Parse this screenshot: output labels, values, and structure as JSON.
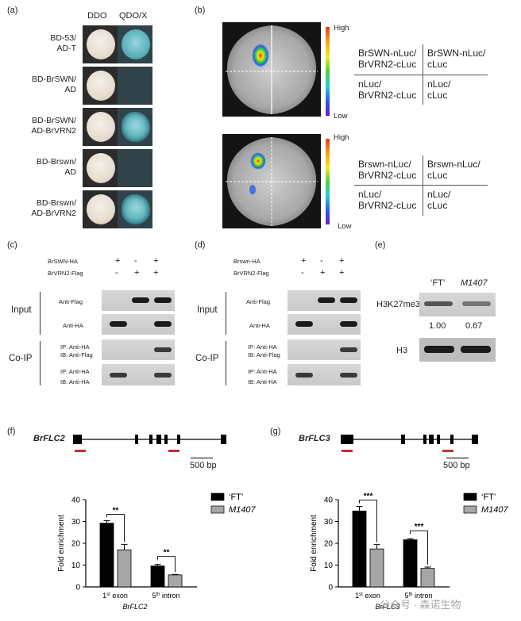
{
  "panel_a": {
    "label": "(a)",
    "columns": [
      "DDO",
      "QDO/X"
    ],
    "rows": [
      {
        "l1": "BD-53/",
        "l2": "AD-T",
        "qdo": "blue-flat"
      },
      {
        "l1": "BD-BrSWN/",
        "l2": "AD",
        "qdo": "none"
      },
      {
        "l1": "BD-BrSWN/",
        "l2": "AD-BrVRN2",
        "qdo": "blue-ruffled"
      },
      {
        "l1": "BD-Brswn/",
        "l2": "AD",
        "qdo": "none"
      },
      {
        "l1": "BD-Brswn/",
        "l2": "AD-BrVRN2",
        "qdo": "blue-ruffled"
      }
    ],
    "colors": {
      "cell_bg": "#2b2b2b",
      "qdo_bg": "#30434a"
    }
  },
  "panel_b": {
    "label": "(b)",
    "scale_high": "High",
    "scale_low": "Low",
    "top": {
      "tl1": "BrSWN-nLuc/",
      "tl2": "BrVRN2-cLuc",
      "tr1": "BrSWN-nLuc/",
      "tr2": "cLuc",
      "bl1": "nLuc/",
      "bl2": "BrVRN2-cLuc",
      "br1": "nLuc/",
      "br2": "cLuc"
    },
    "bottom": {
      "tl1": "Brswn-nLuc/",
      "tl2": "BrVRN2-cLuc",
      "tr1": "Brswn-nLuc/",
      "tr2": "cLuc",
      "bl1": "nLuc/",
      "bl2": "BrVRN2-cLuc",
      "br1": "nLuc/",
      "br2": "cLuc"
    }
  },
  "panel_c": {
    "label": "(c)",
    "row1_label": "BrSWN-HA",
    "row2_label": "BrVRN2-Flag",
    "row1_signs": [
      "+",
      "-",
      "+"
    ],
    "row2_signs": [
      "-",
      "+",
      "+"
    ],
    "input_label": "Input",
    "coip_label": "Co-IP",
    "blots": [
      "Anti-Flag",
      "Anti-HA",
      "IP: Anti-HA",
      "IB: Anti-Flag",
      "IP: Anti-HA",
      "IB: Anti-HA"
    ]
  },
  "panel_d": {
    "label": "(d)",
    "row1_label": "Brswn-HA",
    "row2_label": "BrVRN2-Flag",
    "row1_signs": [
      "+",
      "-",
      "+"
    ],
    "row2_signs": [
      "-",
      "+",
      "+"
    ],
    "input_label": "Input",
    "coip_label": "Co-IP",
    "blots": [
      "Anti-Flag",
      "Anti-HA",
      "IP: Anti-HA",
      "IB: Anti-Flag",
      "IP: Anti-HA",
      "IB: Anti-HA"
    ]
  },
  "panel_e": {
    "label": "(e)",
    "col1": "‘FT’",
    "col2": "M1407",
    "row1": "H3K27me3",
    "values": [
      "1.00",
      "0.67"
    ],
    "row2": "H3"
  },
  "panel_f": {
    "label": "(f)",
    "gene": "BrFLC2",
    "scale": "500 bp"
  },
  "panel_g": {
    "label": "(g)",
    "gene": "BrFLC3",
    "scale": "500 bp"
  },
  "watermark": "公众号 · 森诺生物",
  "chart_data": [
    {
      "type": "bar",
      "categories": [
        "1st exon",
        "5th intron"
      ],
      "category_sup": [
        "st",
        "th"
      ],
      "category_main": [
        "1",
        "5"
      ],
      "category_rest": [
        " exon",
        " intron"
      ],
      "series": [
        {
          "name": "‘FT’",
          "values": [
            29.2,
            9.6
          ],
          "errors": [
            1.2,
            0.7
          ],
          "color": "#000000"
        },
        {
          "name": "M1407",
          "values": [
            17.0,
            5.5
          ],
          "errors": [
            2.5,
            0.2
          ],
          "color": "#a6a6a6"
        }
      ],
      "significance": [
        "**",
        "**"
      ],
      "xlabel": "BrFLC2",
      "ylabel": "Fold enrichment",
      "ylim": [
        0,
        40
      ],
      "yticks": [
        0,
        10,
        20,
        30,
        40
      ],
      "legend": "right"
    },
    {
      "type": "bar",
      "categories": [
        "1st exon",
        "5th intron"
      ],
      "category_sup": [
        "st",
        "th"
      ],
      "category_main": [
        "1",
        "5"
      ],
      "category_rest": [
        " exon",
        " intron"
      ],
      "series": [
        {
          "name": "‘FT’",
          "values": [
            34.8,
            21.6
          ],
          "errors": [
            2.1,
            0.5
          ],
          "color": "#000000"
        },
        {
          "name": "M1407",
          "values": [
            17.4,
            8.5
          ],
          "errors": [
            2.0,
            0.6
          ],
          "color": "#a6a6a6"
        }
      ],
      "significance": [
        "***",
        "***"
      ],
      "xlabel": "BrFLC3",
      "ylabel": "Fold enrichment",
      "ylim": [
        0,
        40
      ],
      "yticks": [
        0,
        10,
        20,
        30,
        40
      ],
      "legend": "right"
    }
  ]
}
